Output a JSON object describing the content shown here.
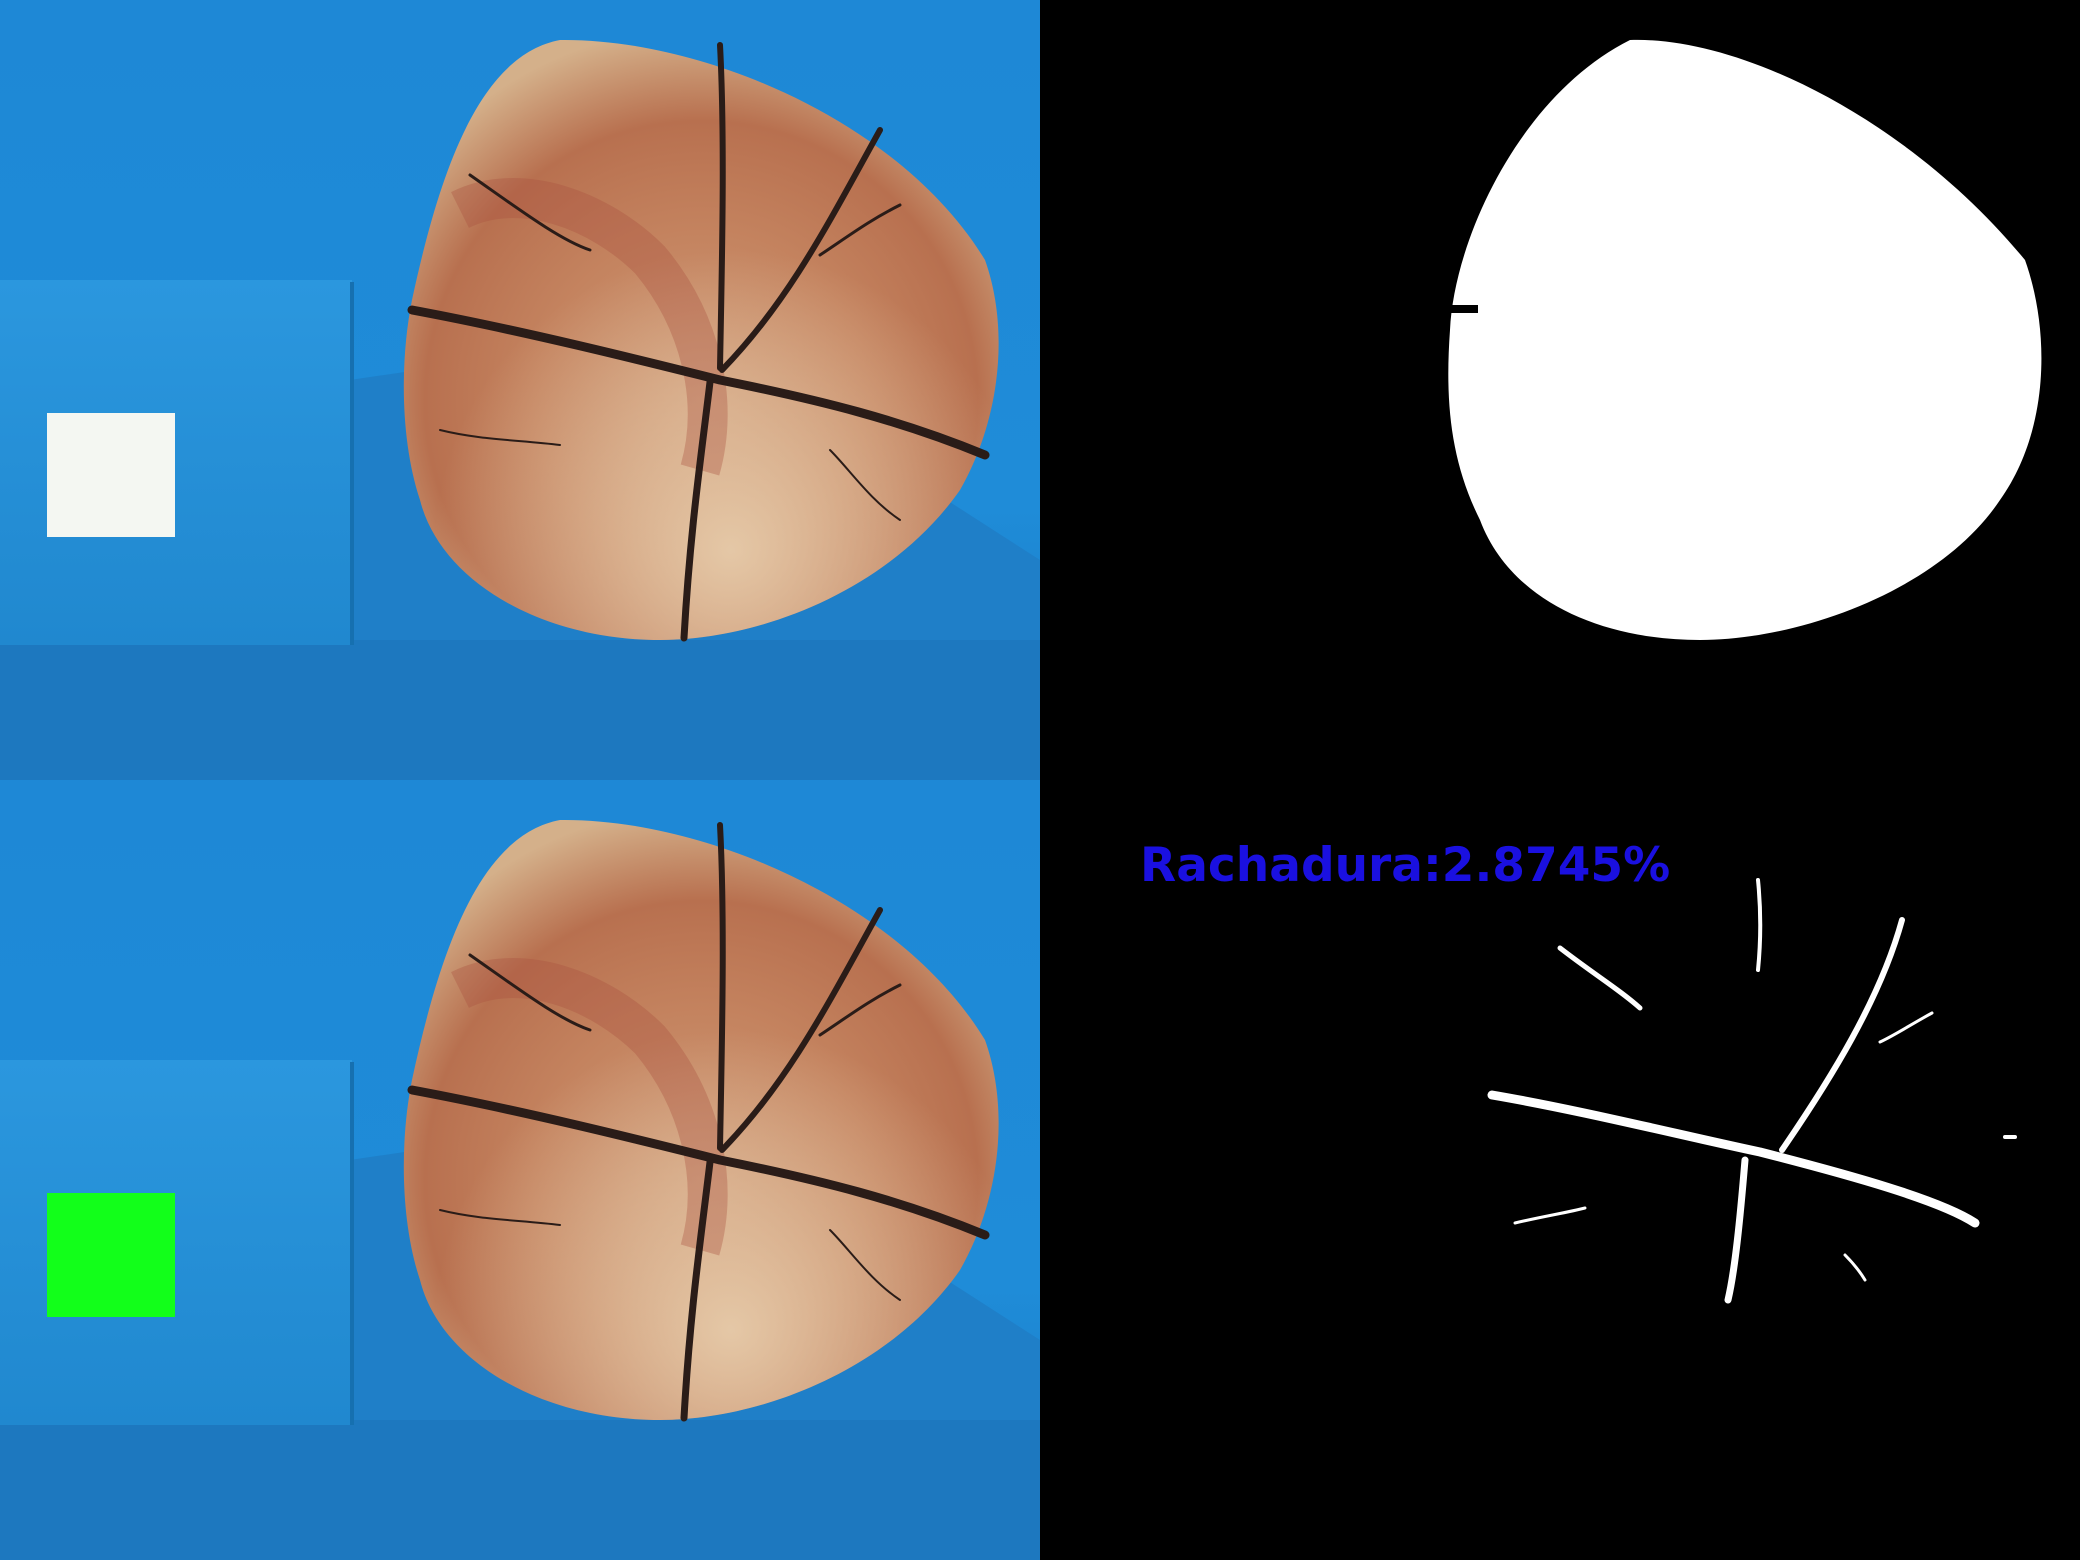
{
  "panels": [
    {
      "id": "original-photo",
      "scale_marker_color": "#f4f7f2"
    },
    {
      "id": "wood-disc-mask",
      "foreground_color": "#ffffff",
      "background_color": "#000000"
    },
    {
      "id": "detected-photo",
      "scale_marker_color": "#12ff1a"
    },
    {
      "id": "crack-mask",
      "foreground_color": "#ffffff",
      "background_color": "#000000"
    }
  ],
  "result": {
    "label": "Rachadura:2.8745%",
    "crack_percentage": 2.8745,
    "label_color": "#1a10e0"
  },
  "colors": {
    "backdrop_blue": "#1f8ad6",
    "box_blue": "#2a95dc",
    "wood_warm": "#c98a66",
    "wood_red": "#b45a48",
    "crack_dark": "#2a1c18"
  }
}
